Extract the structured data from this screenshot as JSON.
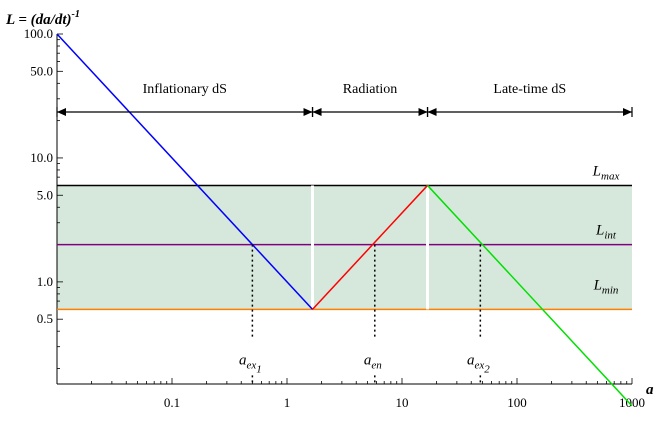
{
  "chart_data": {
    "type": "line",
    "x_scale": "log",
    "y_scale": "log",
    "xlim": [
      0.01,
      1000
    ],
    "ylim": [
      0.15,
      100
    ],
    "title": "",
    "ylabel": {
      "main": "L = (da/dt)",
      "superscript": "-1"
    },
    "xlabel": "a",
    "x_ticks": [
      {
        "value": 0.1,
        "label": "0.1"
      },
      {
        "value": 1,
        "label": "1"
      },
      {
        "value": 10,
        "label": "10"
      },
      {
        "value": 100,
        "label": "100"
      },
      {
        "value": 1000,
        "label": "1000"
      }
    ],
    "y_ticks": [
      {
        "value": 100,
        "label": "100.0"
      },
      {
        "value": 50,
        "label": "50.0"
      },
      {
        "value": 10,
        "label": "10.0"
      },
      {
        "value": 5,
        "label": "5.0"
      },
      {
        "value": 1,
        "label": "1.0"
      },
      {
        "value": 0.5,
        "label": "0.5"
      }
    ],
    "band": {
      "ymin": 0.6,
      "ymax": 6,
      "color": "#d6e8dc"
    },
    "hlines": [
      {
        "y": 6,
        "color": "#000000",
        "label_main": "L",
        "label_sub": "max"
      },
      {
        "y": 2,
        "color": "#800080",
        "label_main": "L",
        "label_sub": "int"
      },
      {
        "y": 0.6,
        "color": "#ff8000",
        "label_main": "L",
        "label_sub": "min"
      }
    ],
    "series": [
      {
        "color": "#0000ff",
        "x": [
          0.01,
          1.667
        ],
        "y": [
          100,
          0.6
        ]
      },
      {
        "color": "#ff0000",
        "x": [
          1.667,
          16.67
        ],
        "y": [
          0.6,
          6
        ]
      },
      {
        "color": "#00e000",
        "x": [
          16.67,
          1000
        ],
        "y": [
          6,
          0.1
        ]
      }
    ],
    "gaps": [
      {
        "x": 1.667
      },
      {
        "x": 16.67
      }
    ],
    "phases": [
      {
        "label": "Inflationary dS",
        "x_start": 0.01,
        "x_end": 1.667
      },
      {
        "label": "Radiation",
        "x_start": 1.667,
        "x_end": 16.67
      },
      {
        "label": "Late-time dS",
        "x_start": 16.67,
        "x_end": 1000
      }
    ],
    "markers": [
      {
        "x": 0.5,
        "y_top": 2,
        "label_main": "a",
        "label_sub": "ex",
        "label_subsub": "1"
      },
      {
        "x": 5.8,
        "y_top": 2,
        "label_main": "a",
        "label_sub": "en",
        "label_subsub": ""
      },
      {
        "x": 48,
        "y_top": 2,
        "label_main": "a",
        "label_sub": "ex",
        "label_subsub": "2"
      }
    ]
  }
}
